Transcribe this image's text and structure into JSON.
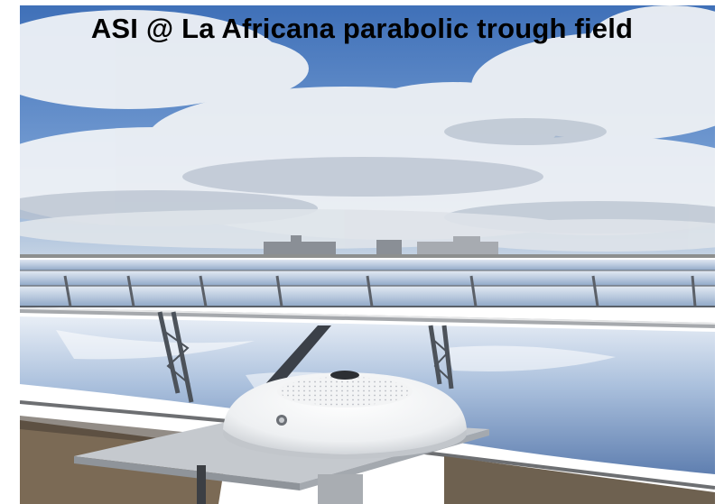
{
  "slide": {
    "title": "ASI @ La Africana parabolic trough field"
  },
  "photo": {
    "subject": "all-sky imager on a mounting plate in front of rows of parabolic trough mirrors under a cloudy sky",
    "sky_color": "#4f7fc0",
    "cloud_color": "#e9ecf0",
    "mirror_color": "#c7d5e6",
    "ground_color": "#7b6a55"
  }
}
